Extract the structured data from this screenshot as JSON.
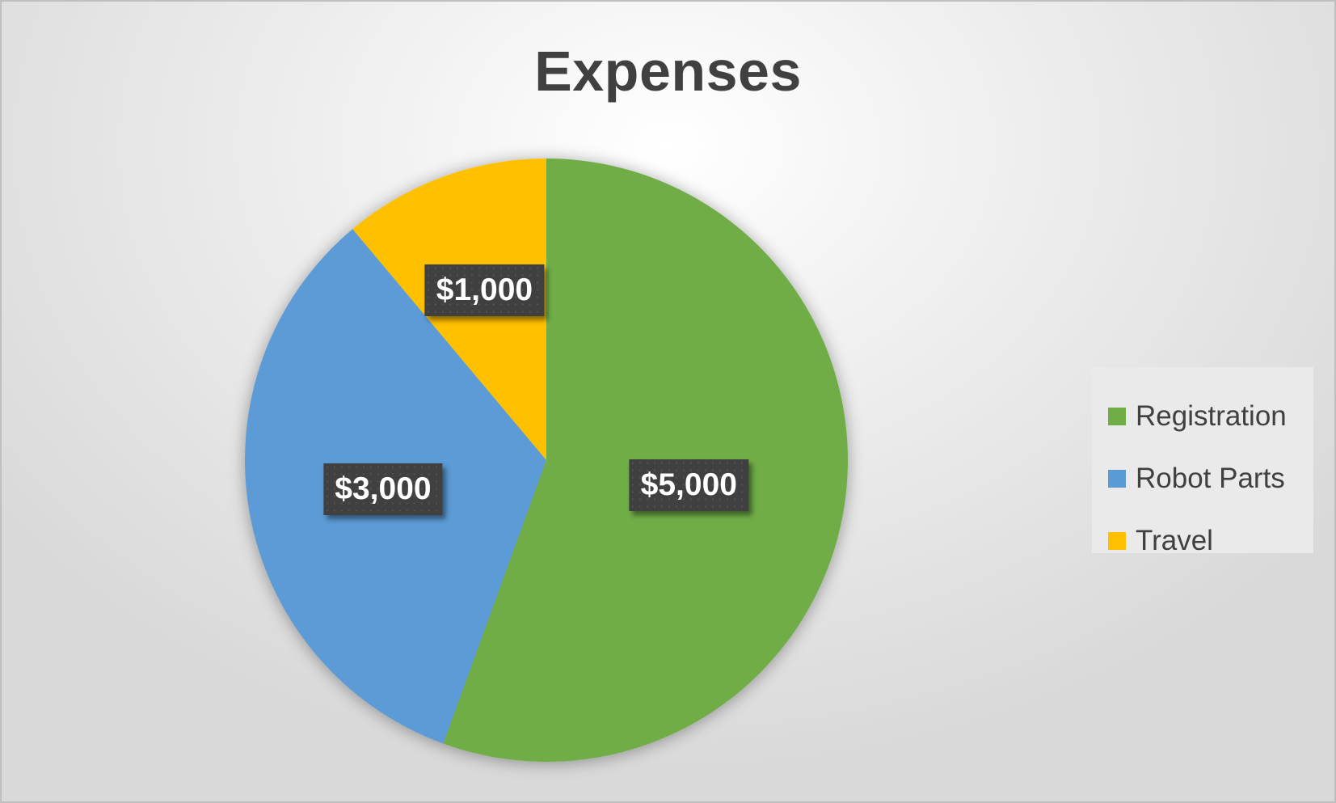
{
  "chart_data": {
    "type": "pie",
    "title": "Expenses",
    "categories": [
      "Registration",
      "Robot Parts",
      "Travel"
    ],
    "values": [
      5000,
      3000,
      1000
    ],
    "data_labels": [
      "$5,000",
      "$3,000",
      "$1,000"
    ],
    "colors": [
      "#70ad47",
      "#5b9bd5",
      "#ffc000"
    ],
    "start_angle_deg": 0,
    "direction": "clockwise",
    "legend_position": "right",
    "legend": [
      {
        "label": "Registration",
        "color": "#70ad47"
      },
      {
        "label": "Robot Parts",
        "color": "#5b9bd5"
      },
      {
        "label": "Travel",
        "color": "#ffc000"
      }
    ]
  }
}
